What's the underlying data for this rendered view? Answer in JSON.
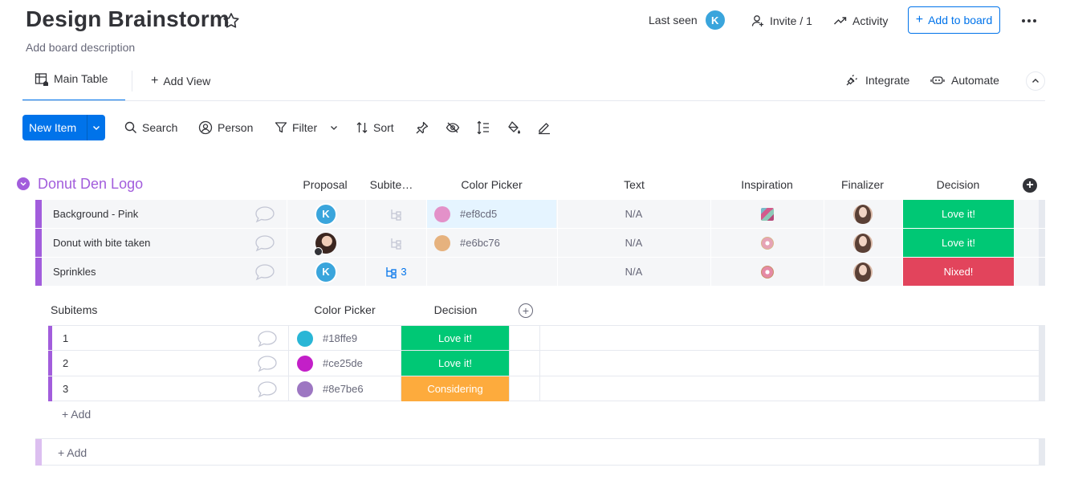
{
  "header": {
    "title": "Design Brainstorm",
    "description": "Add board description",
    "last_seen_label": "Last seen",
    "last_seen_avatar": "K",
    "invite_label": "Invite / 1",
    "activity_label": "Activity",
    "add_to_board_label": "Add to board"
  },
  "tabs": {
    "main_table": "Main Table",
    "add_view": "Add View",
    "integrate": "Integrate",
    "automate": "Automate"
  },
  "toolbar": {
    "new_item": "New Item",
    "search": "Search",
    "person": "Person",
    "filter": "Filter",
    "sort": "Sort"
  },
  "group": {
    "title": "Donut Den Logo",
    "color": "#a25ddc",
    "columns": {
      "proposal": "Proposal",
      "subitems": "Subite…",
      "color_picker": "Color Picker",
      "text": "Text",
      "inspiration": "Inspiration",
      "finalizer": "Finalizer",
      "decision": "Decision"
    },
    "rows": [
      {
        "name": "Background - Pink",
        "proposal": "K",
        "color_value": "#ef8cd5",
        "color": "#e391c9",
        "text": "N/A",
        "decision": "Love it!",
        "decision_color": "#00c875"
      },
      {
        "name": "Donut with bite taken",
        "proposal": "photo",
        "color_value": "#e6bc76",
        "color": "#e6b27e",
        "text": "N/A",
        "decision": "Love it!",
        "decision_color": "#00c875"
      },
      {
        "name": "Sprinkles",
        "proposal": "K",
        "subitems_count": "3",
        "color_value": "",
        "text": "N/A",
        "decision": "Nixed!",
        "decision_color": "#e2445c"
      }
    ]
  },
  "subitems": {
    "header": "Subitems",
    "color_picker": "Color Picker",
    "decision": "Decision",
    "add_label": "+ Add",
    "rows": [
      {
        "name": "1",
        "color_value": "#18ffe9",
        "color": "#29b6d6",
        "decision": "Love it!",
        "decision_color": "#00c875"
      },
      {
        "name": "2",
        "color_value": "#ce25de",
        "color": "#c31fc8",
        "decision": "Love it!",
        "decision_color": "#00c875"
      },
      {
        "name": "3",
        "color_value": "#8e7be6",
        "color": "#9d77c2",
        "decision": "Considering",
        "decision_color": "#fdab3d"
      }
    ]
  },
  "group_add_label": "+ Add"
}
